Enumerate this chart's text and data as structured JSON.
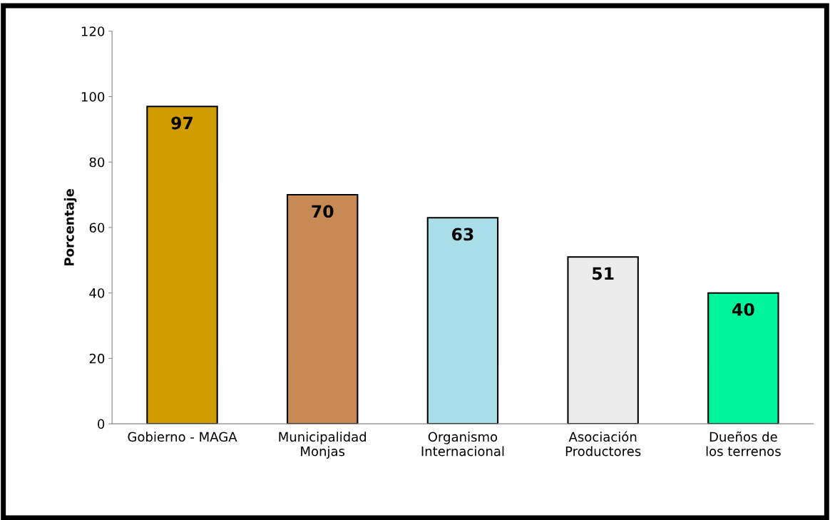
{
  "chart_data": {
    "type": "bar",
    "ylabel": "Porcentaje",
    "categories": [
      "Gobierno - MAGA",
      "Municipalidad\nMonjas",
      "Organismo\nInternacional",
      "Asociación\nProductores",
      "Dueños de\nlos terrenos"
    ],
    "values": [
      97,
      70,
      63,
      51,
      40
    ],
    "colors": [
      "#d19c00",
      "#c88a55",
      "#a9dde8",
      "#ececec",
      "#00f59a"
    ],
    "ylim": [
      0,
      120
    ],
    "yticks": [
      0,
      20,
      40,
      60,
      80,
      100,
      120
    ],
    "grid": false,
    "data_labels": true
  }
}
